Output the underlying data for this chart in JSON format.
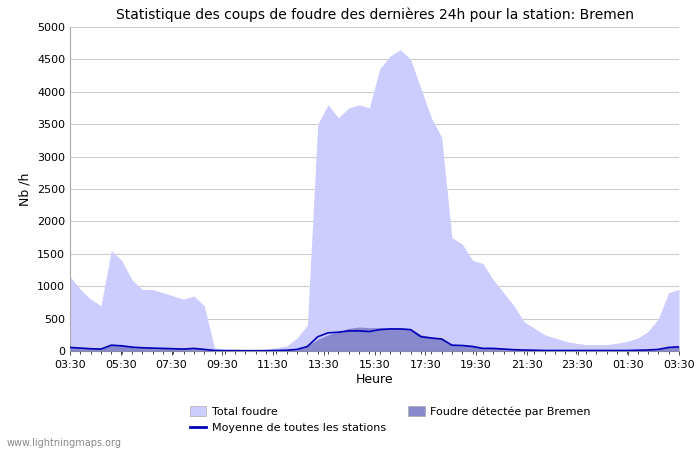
{
  "title": "Statistique des coups de foudre des dernières 24h pour la station: Bremen",
  "xlabel": "Heure",
  "ylabel": "Nb /h",
  "ylim": [
    0,
    5000
  ],
  "yticks": [
    0,
    500,
    1000,
    1500,
    2000,
    2500,
    3000,
    3500,
    4000,
    4500,
    5000
  ],
  "xtick_labels": [
    "03:30",
    "05:30",
    "07:30",
    "09:30",
    "11:30",
    "13:30",
    "15:30",
    "17:30",
    "19:30",
    "21:30",
    "23:30",
    "01:30",
    "03:30"
  ],
  "background_color": "#ffffff",
  "plot_bg_color": "#ffffff",
  "grid_color": "#cccccc",
  "total_foudre_color": "#ccccff",
  "foudre_bremen_color": "#8888cc",
  "moyenne_color": "#0000bb",
  "watermark": "www.lightningmaps.org",
  "total_foudre": [
    1150,
    950,
    800,
    700,
    1550,
    1400,
    1100,
    950,
    950,
    900,
    850,
    800,
    850,
    700,
    50,
    30,
    30,
    20,
    20,
    30,
    50,
    80,
    200,
    400,
    3500,
    3800,
    3600,
    3750,
    3800,
    3750,
    4350,
    4550,
    4650,
    4500,
    4050,
    3600,
    3300,
    1750,
    1650,
    1400,
    1350,
    1100,
    900,
    700,
    450,
    350,
    250,
    200,
    150,
    120,
    100,
    100,
    100,
    120,
    150,
    200,
    300,
    500,
    900,
    950
  ],
  "foudre_bremen": [
    60,
    50,
    40,
    35,
    100,
    90,
    70,
    60,
    55,
    50,
    45,
    40,
    45,
    35,
    10,
    5,
    5,
    5,
    5,
    5,
    10,
    15,
    30,
    80,
    180,
    250,
    300,
    350,
    370,
    360,
    360,
    360,
    360,
    340,
    250,
    220,
    200,
    100,
    100,
    80,
    50,
    50,
    40,
    30,
    20,
    15,
    10,
    10,
    10,
    10,
    10,
    10,
    10,
    10,
    10,
    15,
    20,
    30,
    60,
    70
  ],
  "moyenne": [
    55,
    45,
    35,
    30,
    90,
    80,
    60,
    50,
    45,
    40,
    35,
    30,
    40,
    25,
    8,
    5,
    5,
    5,
    5,
    5,
    8,
    12,
    25,
    70,
    220,
    280,
    290,
    310,
    310,
    300,
    330,
    340,
    340,
    330,
    220,
    200,
    185,
    90,
    85,
    70,
    40,
    40,
    30,
    20,
    15,
    12,
    8,
    8,
    8,
    8,
    8,
    8,
    8,
    8,
    8,
    12,
    15,
    25,
    55,
    65
  ]
}
